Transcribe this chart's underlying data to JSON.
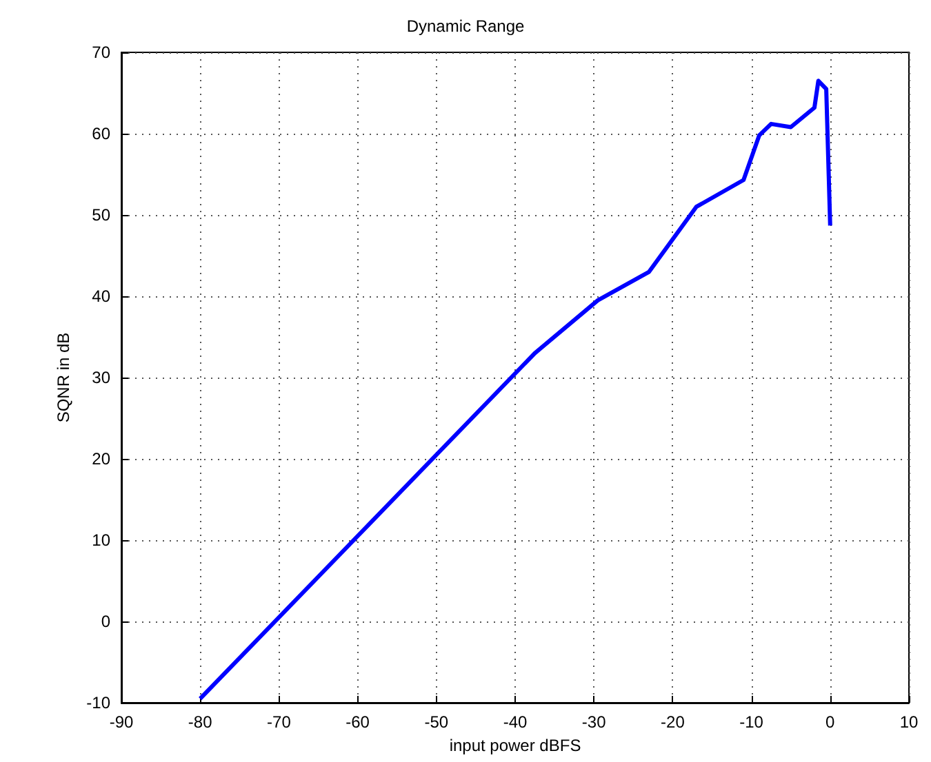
{
  "chart_data": {
    "type": "line",
    "title": "Dynamic Range",
    "xlabel": "input power dBFS",
    "ylabel": "SQNR in dB",
    "x": [
      -80,
      -37.5,
      -29.5,
      -23,
      -17,
      -11,
      -9,
      -7.5,
      -5,
      -2,
      -1.5,
      -0.5,
      0
    ],
    "series": [
      {
        "color": "#0000ff",
        "values": [
          -9.5,
          33,
          39.5,
          43,
          51,
          54.3,
          59.8,
          61.2,
          60.8,
          63.2,
          66.5,
          65.5,
          48.7
        ]
      }
    ],
    "xlim": [
      -90,
      10
    ],
    "xticks": [
      -90,
      -80,
      -70,
      -60,
      -50,
      -40,
      -30,
      -20,
      -10,
      0,
      10
    ],
    "ylim": [
      -10,
      70
    ],
    "yticks": [
      -10,
      0,
      10,
      20,
      30,
      40,
      50,
      60,
      70
    ],
    "grid": true,
    "marker": "none",
    "line_style": "solid"
  }
}
